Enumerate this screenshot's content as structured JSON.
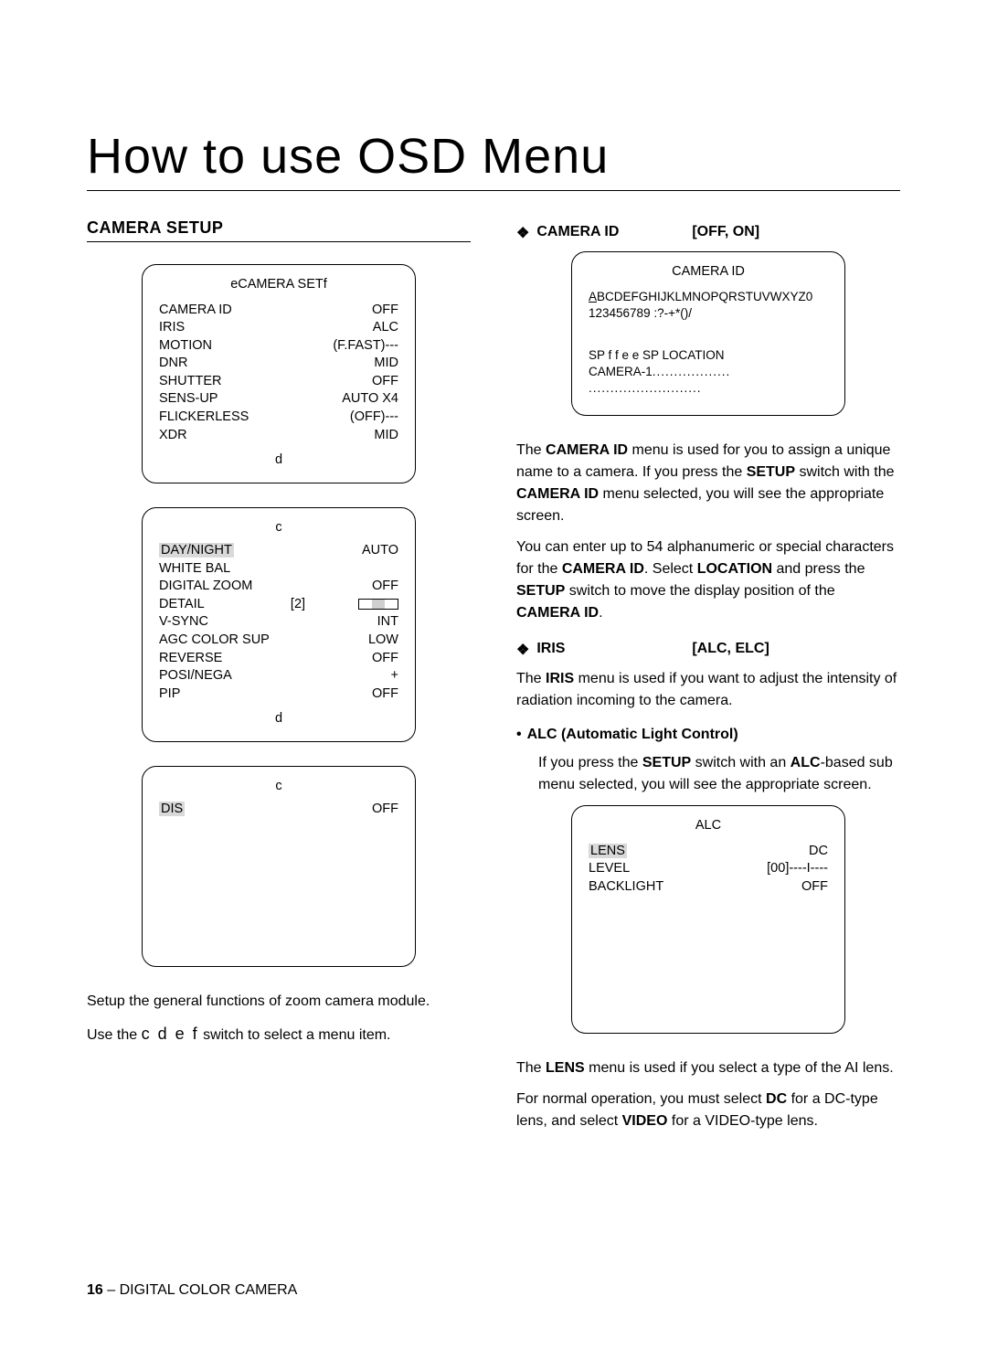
{
  "page": {
    "title": "How to use OSD Menu",
    "footer_page": "16",
    "footer_sep": " – ",
    "footer_book": "DIGITAL COLOR CAMERA"
  },
  "left": {
    "section_heading": "CAMERA SETUP",
    "osd1": {
      "title": "eCAMERA SETf",
      "rows": [
        {
          "k": "CAMERA ID",
          "v": "OFF"
        },
        {
          "k": "IRIS",
          "v": "ALC"
        },
        {
          "k": "MOTION",
          "v": "(F.FAST)---"
        },
        {
          "k": "DNR",
          "v": "MID"
        },
        {
          "k": "SHUTTER",
          "v": "OFF"
        },
        {
          "k": "SENS-UP",
          "v": "AUTO X4"
        },
        {
          "k": "FLICKERLESS",
          "v": "(OFF)---"
        },
        {
          "k": "XDR",
          "v": "MID"
        }
      ],
      "foot": "d"
    },
    "osd2": {
      "title": "c",
      "rows": [
        {
          "k": "DAY/NIGHT",
          "v": "AUTO",
          "hl": true
        },
        {
          "k": "WHITE BAL",
          "v": ""
        },
        {
          "k": "DIGITAL ZOOM",
          "v": "OFF"
        },
        {
          "k": "DETAIL",
          "mid": "[2]",
          "slider": true
        },
        {
          "k": "V-SYNC",
          "v": "INT"
        },
        {
          "k": "AGC COLOR SUP",
          "v": "LOW"
        },
        {
          "k": "REVERSE",
          "v": "OFF"
        },
        {
          "k": "POSI/NEGA",
          "v": "+"
        },
        {
          "k": "PIP",
          "v": "OFF"
        }
      ],
      "foot": "d"
    },
    "osd3": {
      "title": "c",
      "rows": [
        {
          "k": "DIS",
          "v": "OFF",
          "hl": true
        }
      ]
    },
    "para1": "Setup the general functions of zoom camera module.",
    "para2_pre": "Use the  ",
    "para2_keys": "c d e f",
    "para2_post": "   switch to select a menu item."
  },
  "right": {
    "camera_id": {
      "bullet": "❖",
      "label": "CAMERA ID",
      "opts": "[OFF, ON]",
      "osd": {
        "title": "CAMERA ID",
        "line1_first": "A",
        "line1_rest": "BCDEFGHIJKLMNOPQRSTUVWXYZ0",
        "line2": "123456789 :?-+*()/",
        "line3": "SP f f e e  SP LOCATION",
        "line4_pre": "CAMERA-1",
        "line4_dots": "..................",
        "line5_dots": ".........................."
      },
      "p1_a": "The ",
      "p1_b": "CAMERA ID",
      "p1_c": " menu is used for you to assign a unique name to a camera. If you press the ",
      "p1_d": "SETUP",
      "p1_e": " switch with the ",
      "p1_f": "CAMERA ID",
      "p1_g": " menu selected, you will see the appropriate screen.",
      "p2_a": "You can enter up to 54 alphanumeric or special characters for the ",
      "p2_b": "CAMERA ID",
      "p2_c": ". Select ",
      "p2_d": "LOCATION",
      "p2_e": " and press the ",
      "p2_f": "SETUP",
      "p2_g": " switch to move the display position of the ",
      "p2_h": "CAMERA ID",
      "p2_i": "."
    },
    "iris": {
      "bullet": "❖",
      "label": "IRIS",
      "opts": "[ALC, ELC]",
      "p1_a": "The ",
      "p1_b": "IRIS",
      "p1_c": " menu is used if you want to adjust the intensity of radiation incoming to the camera.",
      "alc_head": "ALC (Automatic Light Control)",
      "alc_bullet": "•",
      "p2_a": "If you press the ",
      "p2_b": "SETUP",
      "p2_c": " switch with an ",
      "p2_d": "ALC",
      "p2_e": "-based sub menu selected, you will see the appropriate screen.",
      "osd": {
        "title": "ALC",
        "rows": [
          {
            "k": "LENS",
            "v": "DC",
            "hl": true
          },
          {
            "k": "LEVEL",
            "v": "[00]----I----"
          },
          {
            "k": "BACKLIGHT",
            "v": "OFF"
          }
        ]
      },
      "p3_a": "The ",
      "p3_b": "LENS",
      "p3_c": " menu is used if you select a type of the AI lens.",
      "p4_a": "For normal operation, you must select ",
      "p4_b": "DC",
      "p4_c": " for a DC-type lens, and select ",
      "p4_d": "VIDEO",
      "p4_e": " for a VIDEO-type lens."
    }
  }
}
